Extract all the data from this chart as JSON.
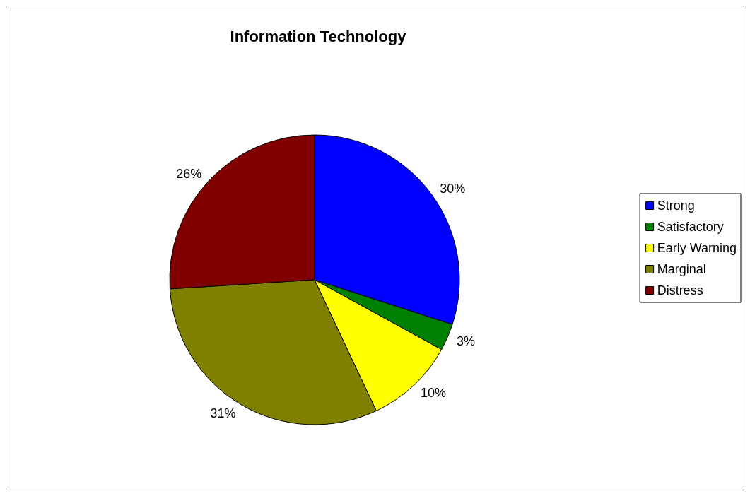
{
  "chart_data": {
    "type": "pie",
    "title": "Information Technology",
    "categories": [
      "Strong",
      "Satisfactory",
      "Early Warning",
      "Marginal",
      "Distress"
    ],
    "values": [
      30,
      3,
      10,
      31,
      26
    ],
    "value_labels": [
      "30%",
      "3%",
      "10%",
      "31%",
      "26%"
    ],
    "colors": [
      "#0000ff",
      "#008000",
      "#ffff00",
      "#808000",
      "#800000"
    ],
    "legend": "right"
  }
}
